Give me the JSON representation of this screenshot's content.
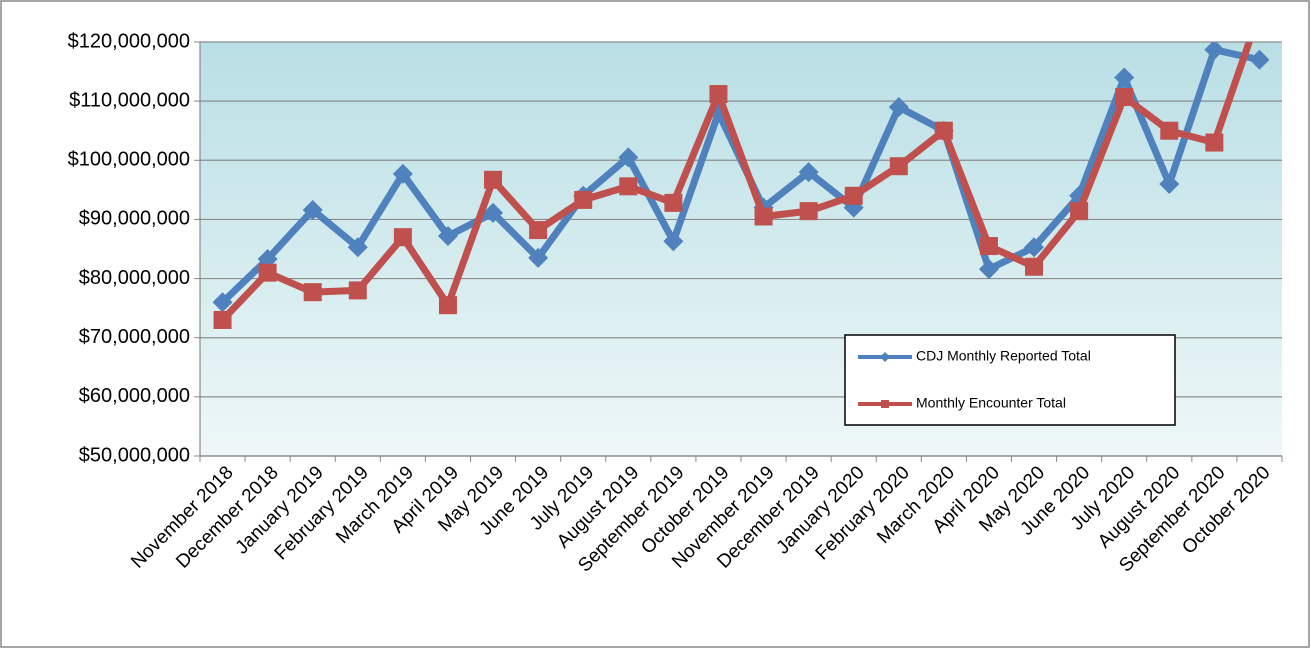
{
  "chart_data": {
    "type": "line",
    "categories": [
      "November 2018",
      "December 2018",
      "January 2019",
      "February 2019",
      "March 2019",
      "April 2019",
      "May 2019",
      "June 2019",
      "July 2019",
      "August 2019",
      "September 2019",
      "October 2019",
      "November 2019",
      "December 2019",
      "January 2020",
      "February 2020",
      "March 2020",
      "April 2020",
      "May 2020",
      "June 2020",
      "July 2020",
      "August 2020",
      "September 2020",
      "October 2020"
    ],
    "series": [
      {
        "name": "CDJ Monthly Reported Total",
        "color": "#4f81bd",
        "marker": "diamond",
        "values": [
          76000000,
          83300000,
          91600000,
          85300000,
          97700000,
          87200000,
          91100000,
          83500000,
          94000000,
          100500000,
          86300000,
          108000000,
          92000000,
          98000000,
          92000000,
          109000000,
          105000000,
          81600000,
          85300000,
          94000000,
          114000000,
          96000000,
          118700000,
          117000000
        ]
      },
      {
        "name": "Monthly Encounter Total",
        "color": "#c0504d",
        "marker": "square",
        "values": [
          73000000,
          81000000,
          77700000,
          78000000,
          87000000,
          75500000,
          96700000,
          88200000,
          93300000,
          95600000,
          92800000,
          111200000,
          90500000,
          91400000,
          94000000,
          99000000,
          105000000,
          85500000,
          82000000,
          91400000,
          110700000,
          105000000,
          103000000,
          125000000
        ]
      }
    ],
    "ylim": [
      50000000,
      120000000
    ],
    "yticks": [
      {
        "value": 50000000,
        "label": "$50,000,000"
      },
      {
        "value": 60000000,
        "label": "$60,000,000"
      },
      {
        "value": 70000000,
        "label": "$70,000,000"
      },
      {
        "value": 80000000,
        "label": "$80,000,000"
      },
      {
        "value": 90000000,
        "label": "$90,000,000"
      },
      {
        "value": 100000000,
        "label": "$100,000,000"
      },
      {
        "value": 110000000,
        "label": "$110,000,000"
      },
      {
        "value": 120000000,
        "label": "$120,000,000"
      }
    ],
    "grid": true
  }
}
